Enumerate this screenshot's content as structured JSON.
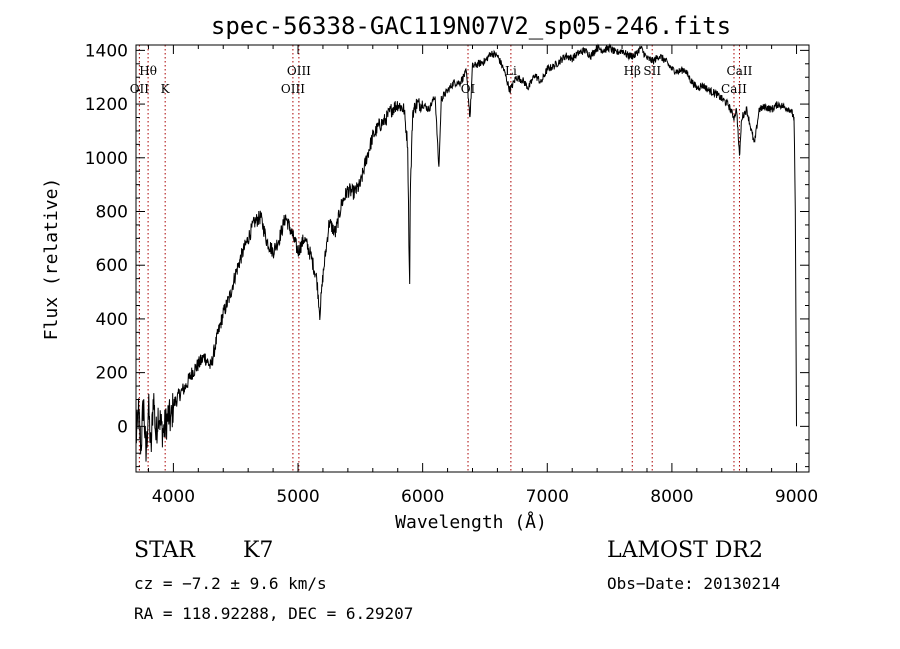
{
  "chart_data": {
    "type": "line",
    "title": "spec-56338-GAC119N07V2_sp05-246.fits",
    "xlabel": "Wavelength (Å)",
    "ylabel": "Flux (relative)",
    "xlim": [
      3700,
      9100
    ],
    "ylim": [
      -170,
      1420
    ],
    "x_ticks": [
      4000,
      5000,
      6000,
      7000,
      8000,
      9000
    ],
    "y_ticks": [
      0,
      200,
      400,
      600,
      800,
      1000,
      1200,
      1400
    ],
    "grid": false,
    "color": "#000000",
    "line_marker_color": "#aa0000",
    "series": [
      {
        "x": [
          3700,
          3720,
          3740,
          3760,
          3780,
          3800,
          3820,
          3840,
          3860,
          3880,
          3900,
          3920,
          3940,
          3960,
          3980,
          4000,
          4050,
          4100,
          4150,
          4200,
          4250,
          4300,
          4350,
          4400,
          4450,
          4500,
          4550,
          4600,
          4650,
          4700,
          4750,
          4800,
          4850,
          4900,
          4950,
          5000,
          5050,
          5100,
          5150,
          5175,
          5200,
          5250,
          5300,
          5350,
          5400,
          5450,
          5500,
          5550,
          5600,
          5650,
          5700,
          5750,
          5800,
          5850,
          5880,
          5890,
          5896,
          5900,
          5920,
          5950,
          6000,
          6050,
          6100,
          6130,
          6150,
          6200,
          6250,
          6300,
          6350,
          6380,
          6400,
          6450,
          6500,
          6550,
          6600,
          6650,
          6700,
          6750,
          6800,
          6850,
          6900,
          6950,
          7000,
          7050,
          7100,
          7150,
          7200,
          7250,
          7300,
          7350,
          7400,
          7450,
          7500,
          7550,
          7600,
          7650,
          7700,
          7750,
          7800,
          7850,
          7900,
          7950,
          8000,
          8050,
          8100,
          8150,
          8200,
          8250,
          8300,
          8350,
          8400,
          8450,
          8498,
          8520,
          8542,
          8560,
          8600,
          8662,
          8700,
          8750,
          8800,
          8850,
          8900,
          8950,
          8980,
          8990,
          9000
        ],
        "y": [
          -50,
          50,
          -80,
          100,
          -120,
          80,
          -100,
          120,
          -40,
          60,
          0,
          -20,
          10,
          40,
          20,
          80,
          120,
          150,
          200,
          230,
          260,
          220,
          330,
          420,
          480,
          570,
          640,
          700,
          760,
          780,
          690,
          650,
          700,
          780,
          720,
          650,
          700,
          640,
          550,
          420,
          560,
          760,
          720,
          830,
          880,
          870,
          900,
          1000,
          1080,
          1120,
          1140,
          1180,
          1200,
          1180,
          1050,
          700,
          520,
          850,
          1170,
          1200,
          1200,
          1180,
          1230,
          960,
          1220,
          1250,
          1280,
          1280,
          1320,
          1150,
          1340,
          1350,
          1360,
          1390,
          1380,
          1330,
          1250,
          1300,
          1290,
          1260,
          1310,
          1280,
          1330,
          1340,
          1360,
          1380,
          1370,
          1390,
          1400,
          1380,
          1410,
          1400,
          1410,
          1390,
          1400,
          1380,
          1380,
          1410,
          1370,
          1360,
          1380,
          1360,
          1330,
          1320,
          1330,
          1290,
          1260,
          1270,
          1250,
          1240,
          1220,
          1200,
          1150,
          1180,
          1000,
          1150,
          1180,
          1050,
          1180,
          1190,
          1180,
          1200,
          1190,
          1180,
          1150,
          800,
          0
        ]
      }
    ],
    "line_markers": [
      {
        "x": 3727,
        "label": "OII",
        "row": "lower"
      },
      {
        "x": 3797,
        "label": "Hθ",
        "row": "upper"
      },
      {
        "x": 3934,
        "label": "K",
        "row": "lower"
      },
      {
        "x": 4959,
        "label": "OIII",
        "row": "lower"
      },
      {
        "x": 5007,
        "label": "OIII",
        "row": "upper"
      },
      {
        "x": 6364,
        "label": "OI",
        "row": "lower"
      },
      {
        "x": 6708,
        "label": "Li",
        "row": "upper"
      },
      {
        "x": 7682,
        "label": "Hβ",
        "row": "upper"
      },
      {
        "x": 7842,
        "label": "SII",
        "row": "upper"
      },
      {
        "x": 8498,
        "label": "CaII",
        "row": "lower"
      },
      {
        "x": 8542,
        "label": "CaII",
        "row": "upper"
      }
    ]
  },
  "info": {
    "object_class": "STAR",
    "subclass": "K7",
    "survey": "LAMOST DR2",
    "cz": "cz = −7.2 ± 9.6 km/s",
    "obs_date": "Obs−Date: 20130214",
    "coords": "RA = 118.92288, DEC =   6.29207"
  }
}
